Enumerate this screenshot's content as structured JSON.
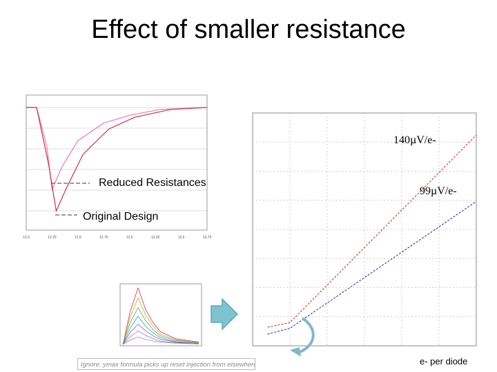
{
  "slide": {
    "title": "Effect of smaller resistance",
    "note": "Ignore: ymax formula picks up reset injection from elsewhere in simulation"
  },
  "colors": {
    "reduced": "#e67ab8",
    "original": "#d0303c",
    "red_series": "#d42020",
    "blue_series": "#2020b0",
    "arrow": "#5aa8b6"
  },
  "icons": [
    "right-arrow-icon",
    "curved-arrow-icon"
  ],
  "chart_data": [
    {
      "type": "line",
      "annotations": [
        "Reduced Resistances",
        "Original Design"
      ],
      "x_ticks": [
        "12.0",
        "12.25",
        "12.5",
        "12.75",
        "13.0",
        "13.25",
        "13.5",
        "13.75"
      ],
      "series": [
        {
          "x": [
            12.0,
            12.1,
            12.2,
            12.25,
            12.35,
            12.5,
            12.75,
            13.0,
            13.3,
            13.75
          ],
          "y": [
            0,
            0,
            -0.2,
            -0.42,
            -0.3,
            -0.17,
            -0.08,
            -0.04,
            -0.01,
            0
          ]
        },
        {
          "x": [
            12.0,
            12.1,
            12.22,
            12.29,
            12.4,
            12.55,
            12.8,
            13.05,
            13.4,
            13.75
          ],
          "y": [
            0,
            0,
            -0.3,
            -0.53,
            -0.4,
            -0.24,
            -0.11,
            -0.05,
            -0.01,
            0
          ]
        }
      ]
    },
    {
      "type": "line",
      "xlabel": "e- per diode",
      "xlim": [
        0,
        3000
      ],
      "ylim": [
        0,
        400
      ],
      "annotations": [
        "140µV/e-",
        "99µV/e-"
      ],
      "series": [
        {
          "x": [
            200,
            500,
            3000
          ],
          "y": [
            32,
            40,
            362
          ]
        },
        {
          "x": [
            200,
            500,
            3000
          ],
          "y": [
            20,
            30,
            248
          ]
        }
      ]
    },
    {
      "type": "line",
      "x": [
        0,
        0.1,
        0.2,
        0.3,
        0.4,
        0.5,
        0.7,
        1.0
      ],
      "series": [
        {
          "values": [
            0,
            0.6,
            1.0,
            0.62,
            0.38,
            0.22,
            0.1,
            0.04
          ]
        },
        {
          "values": [
            0,
            0.5,
            0.82,
            0.52,
            0.32,
            0.18,
            0.08,
            0.03
          ]
        },
        {
          "values": [
            0,
            0.4,
            0.65,
            0.42,
            0.26,
            0.15,
            0.07,
            0.03
          ]
        },
        {
          "values": [
            0,
            0.3,
            0.5,
            0.32,
            0.2,
            0.12,
            0.05,
            0.02
          ]
        },
        {
          "values": [
            0,
            0.22,
            0.36,
            0.24,
            0.15,
            0.09,
            0.04,
            0.02
          ]
        },
        {
          "values": [
            0,
            0.14,
            0.24,
            0.16,
            0.1,
            0.06,
            0.03,
            0.01
          ]
        },
        {
          "values": [
            0,
            0.08,
            0.13,
            0.09,
            0.06,
            0.04,
            0.02,
            0.01
          ]
        }
      ]
    }
  ]
}
